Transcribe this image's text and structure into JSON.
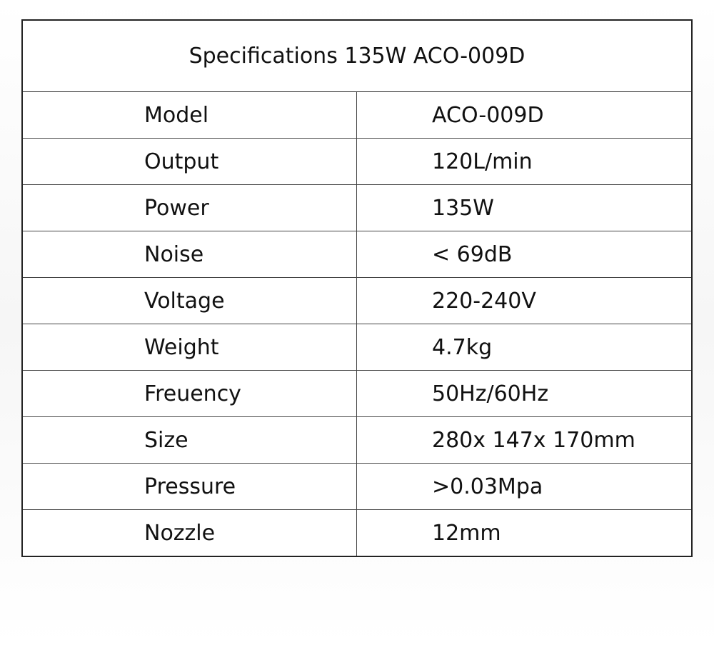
{
  "table": {
    "title": "Specifications 135W ACO-009D",
    "rows": [
      [
        "Model",
        "ACO-009D"
      ],
      [
        "Output",
        "120L/min"
      ],
      [
        "Power",
        "135W"
      ],
      [
        "Noise",
        "< 69dB"
      ],
      [
        "Voltage",
        "220-240V"
      ],
      [
        "Weight",
        "4.7kg"
      ],
      [
        "Freuency",
        "50Hz/60Hz"
      ],
      [
        "Size",
        "280x 147x 170mm"
      ],
      [
        "Pressure",
        ">0.03Mpa"
      ],
      [
        "Nozzle",
        "12mm"
      ]
    ]
  }
}
